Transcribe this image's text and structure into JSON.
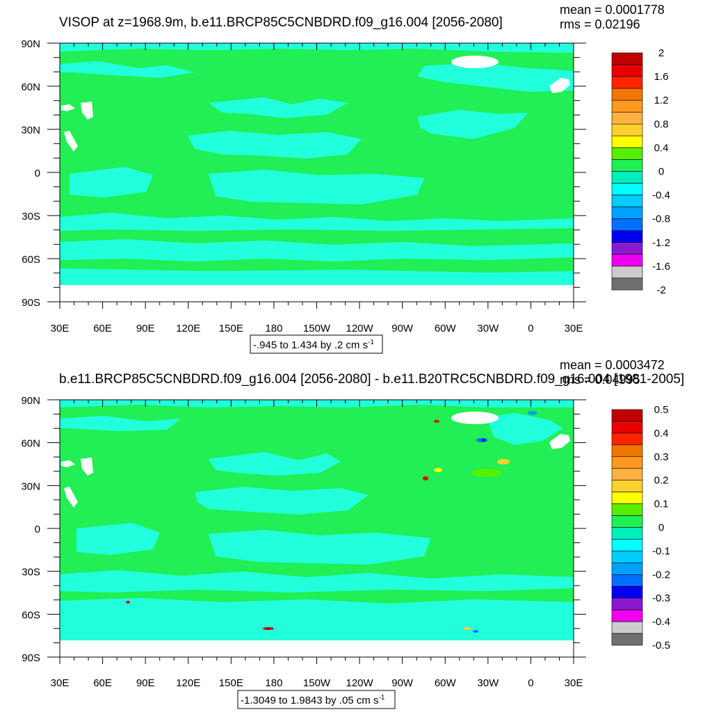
{
  "panels": [
    {
      "title": "VISOP at z=1968.9m, b.e11.BRCP85C5CNBDRD.f09_g16.004 [2056-2080]",
      "mean_text": "mean = 0.0001778",
      "rms_text": "rms = 0.02196",
      "range_text": "-.945 to 1.434 by .2 cm s",
      "range_sup": "-1",
      "colorbar_labels": [
        "2",
        "1.6",
        "1.2",
        "0.8",
        "0.4",
        "0",
        "-0.4",
        "-0.8",
        "-1.2",
        "-1.6",
        "-2"
      ]
    },
    {
      "title": "b.e11.BRCP85C5CNBDRD.f09_g16.004 [2056-2080] - b.e11.B20TRC5CNBDRD.f09_g16.004 [1981-2005]",
      "mean_text": "mean = 0.0003472",
      "rms_text": "rms = 0.04995",
      "range_text": "-1.3049 to 1.9843 by .05 cm s",
      "range_sup": "-1",
      "colorbar_labels": [
        "0.5",
        "0.4",
        "0.3",
        "0.2",
        "0.1",
        "0",
        "-0.1",
        "-0.2",
        "-0.3",
        "-0.4",
        "-0.5"
      ]
    }
  ],
  "lat_labels": [
    "90N",
    "60N",
    "30N",
    "0",
    "30S",
    "60S",
    "90S"
  ],
  "lon_labels": [
    "30E",
    "60E",
    "90E",
    "120E",
    "150E",
    "180",
    "150W",
    "120W",
    "90W",
    "60W",
    "30W",
    "0",
    "30E"
  ],
  "colors": {
    "field_zero": "#22ee55",
    "field_negative": "#22ffdd",
    "land": "#ffffff",
    "palette": [
      "#c00000",
      "#e80000",
      "#ff2400",
      "#ef7600",
      "#ff9820",
      "#ffb040",
      "#ffd030",
      "#ffff00",
      "#58ee00",
      "#22ee55",
      "#00eebb",
      "#00ffff",
      "#00ccff",
      "#00a0ff",
      "#0070ff",
      "#0000ee",
      "#8a1ad0",
      "#ee00ee",
      "#cccccc",
      "#707070"
    ]
  },
  "chart_data": [
    {
      "type": "heatmap",
      "title": "VISOP at z=1968.9m, b.e11.BRCP85C5CNBDRD.f09_g16.004 [2056-2080]",
      "xlabel": "",
      "ylabel": "",
      "x_ticks": [
        "30E",
        "60E",
        "90E",
        "120E",
        "150E",
        "180",
        "150W",
        "120W",
        "90W",
        "60W",
        "30W",
        "0",
        "30E"
      ],
      "y_ticks": [
        "90N",
        "60N",
        "30N",
        "0",
        "30S",
        "60S",
        "90S"
      ],
      "xlim": [
        30,
        390
      ],
      "ylim": [
        -90,
        90
      ],
      "data_min": -0.945,
      "data_max": 1.434,
      "contour_interval": 0.2,
      "units": "cm s-1",
      "mean": 0.0001778,
      "rms": 0.02196,
      "colorbar_levels": [
        2,
        1.6,
        1.2,
        0.8,
        0.4,
        0,
        -0.4,
        -0.8,
        -1.2,
        -1.6,
        -2
      ]
    },
    {
      "type": "heatmap",
      "title": "b.e11.BRCP85C5CNBDRD.f09_g16.004 [2056-2080] - b.e11.B20TRC5CNBDRD.f09_g16.004 [1981-2005]",
      "xlabel": "",
      "ylabel": "",
      "x_ticks": [
        "30E",
        "60E",
        "90E",
        "120E",
        "150E",
        "180",
        "150W",
        "120W",
        "90W",
        "60W",
        "30W",
        "0",
        "30E"
      ],
      "y_ticks": [
        "90N",
        "60N",
        "30N",
        "0",
        "30S",
        "60S",
        "90S"
      ],
      "xlim": [
        30,
        390
      ],
      "ylim": [
        -90,
        90
      ],
      "data_min": -1.3049,
      "data_max": 1.9843,
      "contour_interval": 0.05,
      "units": "cm s-1",
      "mean": 0.0003472,
      "rms": 0.04995,
      "colorbar_levels": [
        0.5,
        0.4,
        0.3,
        0.2,
        0.1,
        0,
        -0.1,
        -0.2,
        -0.3,
        -0.4,
        -0.5
      ]
    }
  ]
}
